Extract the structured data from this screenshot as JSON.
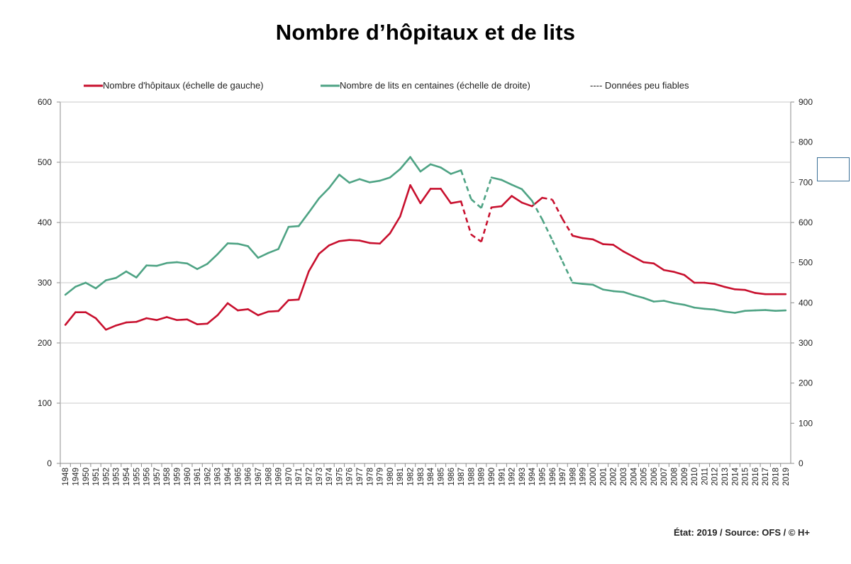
{
  "chart_data": {
    "type": "line",
    "title": "Nombre d’hôpitaux et de lits",
    "x": [
      1948,
      1949,
      1950,
      1951,
      1952,
      1953,
      1954,
      1955,
      1956,
      1957,
      1958,
      1959,
      1960,
      1961,
      1962,
      1963,
      1964,
      1965,
      1966,
      1967,
      1968,
      1969,
      1970,
      1971,
      1972,
      1973,
      1974,
      1975,
      1976,
      1977,
      1978,
      1979,
      1980,
      1981,
      1982,
      1983,
      1984,
      1985,
      1986,
      1987,
      1988,
      1989,
      1990,
      1991,
      1992,
      1993,
      1994,
      1995,
      1996,
      1997,
      1998,
      1999,
      2000,
      2001,
      2002,
      2003,
      2004,
      2005,
      2006,
      2007,
      2008,
      2009,
      2010,
      2011,
      2012,
      2013,
      2014,
      2015,
      2016,
      2017,
      2018,
      2019
    ],
    "x_tick_labels": [
      "1948",
      "1949",
      "1950",
      "1951",
      "1952",
      "1953",
      "1954",
      "1955",
      "1956",
      "1957",
      "1958",
      "1959",
      "1960",
      "1961",
      "1962",
      "1963",
      "1964",
      "1965",
      "1966",
      "1967",
      "1968",
      "1969",
      "1970",
      "1971",
      "1972",
      "1973",
      "1974",
      "1975",
      "1976",
      "1977",
      "1978",
      "1979",
      "1980",
      "1981",
      "1982",
      "1983",
      "1984",
      "1985",
      "1986",
      "1987",
      "1988",
      "1989",
      "1990",
      "1991",
      "1992",
      "1993",
      "1994",
      "1995",
      "1996",
      "1997",
      "1998",
      "1999",
      "2000",
      "2001",
      "2002",
      "2003",
      "2004",
      "2005",
      "2006",
      "2007",
      "2008",
      "2009",
      "2010",
      "2011",
      "2012",
      "2013",
      "2014",
      "2015",
      "2016",
      "2017",
      "2018",
      "2019"
    ],
    "y_left_range": [
      0,
      600
    ],
    "y_left_ticks": [
      "0",
      "100",
      "200",
      "300",
      "400",
      "500",
      "600"
    ],
    "y_right_range": [
      0,
      900
    ],
    "y_right_ticks": [
      "0",
      "100",
      "200",
      "300",
      "400",
      "500",
      "600",
      "700",
      "800",
      "900"
    ],
    "series": [
      {
        "name": "Nombre d'hôpitaux (échelle de gauche)",
        "axis": "left",
        "color": "#c8102e",
        "values": [
          230,
          251,
          251,
          241,
          222,
          229,
          234,
          235,
          241,
          238,
          243,
          238,
          239,
          231,
          232,
          246,
          266,
          254,
          256,
          246,
          252,
          253,
          271,
          272,
          319,
          348,
          362,
          369,
          371,
          370,
          366,
          365,
          382,
          410,
          462,
          432,
          456,
          456,
          432,
          435,
          380,
          368,
          425,
          427,
          444,
          433,
          427,
          441,
          438,
          406,
          378,
          374,
          372,
          364,
          363,
          352,
          343,
          334,
          332,
          321,
          318,
          313,
          300,
          300,
          298,
          293,
          289,
          288,
          283,
          281,
          281,
          281
        ],
        "unreliable_segments": [
          [
            1987,
            1990
          ],
          [
            1995,
            1998
          ]
        ]
      },
      {
        "name": "Nombre de lits en centaines (échelle de droite)",
        "axis": "right",
        "color": "#4ea384",
        "values": [
          420,
          440,
          450,
          436,
          456,
          462,
          478,
          463,
          493,
          492,
          499,
          501,
          498,
          484,
          497,
          521,
          548,
          547,
          541,
          512,
          524,
          534,
          589,
          591,
          625,
          660,
          686,
          719,
          699,
          708,
          700,
          704,
          712,
          733,
          763,
          727,
          745,
          737,
          721,
          730,
          658,
          636,
          712,
          706,
          694,
          683,
          654,
          608,
          556,
          503,
          450,
          447,
          445,
          433,
          429,
          427,
          419,
          412,
          403,
          405,
          399,
          395,
          388,
          385,
          383,
          378,
          375,
          380,
          381,
          382,
          380,
          381
        ],
        "unreliable_segments": [
          [
            1987,
            1990
          ],
          [
            1994,
            1998
          ]
        ]
      }
    ],
    "legend": {
      "hospitals": "Nombre d'hôpitaux (échelle de gauche)",
      "beds": "Nombre de lits en centaines (échelle de droite)",
      "unreliable": "---- Données peu fiables"
    }
  },
  "footer": "État: 2019 / Source: OFS / © H+"
}
